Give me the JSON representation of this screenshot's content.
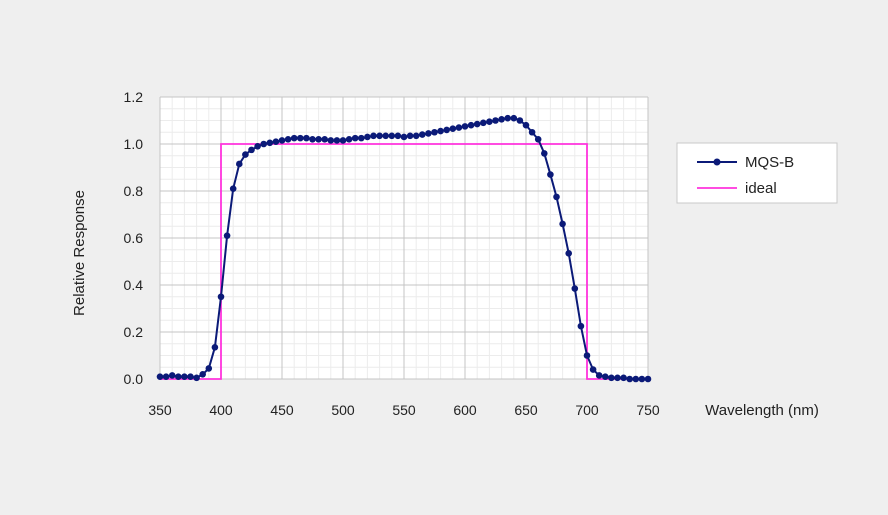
{
  "chart_data": {
    "type": "line",
    "title": "",
    "xlabel": "Wavelength (nm)",
    "ylabel": "Relative Response",
    "xlim": [
      350,
      750
    ],
    "ylim": [
      0,
      1.2
    ],
    "x_ticks": [
      350,
      400,
      450,
      500,
      550,
      600,
      650,
      700,
      750
    ],
    "y_ticks": [
      "0.0",
      "0.2",
      "0.4",
      "0.6",
      "0.8",
      "1.0",
      "1.2"
    ],
    "grid": true,
    "legend_position": "right",
    "series": [
      {
        "name": "MQS-B",
        "color": "#0b1a78",
        "marker": "circle",
        "x": [
          350,
          355,
          360,
          365,
          370,
          375,
          380,
          385,
          390,
          395,
          400,
          405,
          410,
          415,
          420,
          425,
          430,
          435,
          440,
          445,
          450,
          455,
          460,
          465,
          470,
          475,
          480,
          485,
          490,
          495,
          500,
          505,
          510,
          515,
          520,
          525,
          530,
          535,
          540,
          545,
          550,
          555,
          560,
          565,
          570,
          575,
          580,
          585,
          590,
          595,
          600,
          605,
          610,
          615,
          620,
          625,
          630,
          635,
          640,
          645,
          650,
          655,
          660,
          665,
          670,
          675,
          680,
          685,
          690,
          695,
          700,
          705,
          710,
          715,
          720,
          725,
          730,
          735,
          740,
          745,
          750
        ],
        "y": [
          0.01,
          0.01,
          0.015,
          0.01,
          0.01,
          0.01,
          0.005,
          0.02,
          0.045,
          0.135,
          0.35,
          0.61,
          0.81,
          0.915,
          0.955,
          0.975,
          0.99,
          1.0,
          1.005,
          1.01,
          1.015,
          1.02,
          1.025,
          1.025,
          1.025,
          1.02,
          1.02,
          1.02,
          1.015,
          1.015,
          1.015,
          1.02,
          1.025,
          1.025,
          1.03,
          1.035,
          1.035,
          1.035,
          1.035,
          1.035,
          1.03,
          1.035,
          1.035,
          1.04,
          1.045,
          1.05,
          1.055,
          1.06,
          1.065,
          1.07,
          1.075,
          1.08,
          1.085,
          1.09,
          1.095,
          1.1,
          1.105,
          1.11,
          1.11,
          1.1,
          1.08,
          1.05,
          1.02,
          0.96,
          0.87,
          0.775,
          0.66,
          0.535,
          0.385,
          0.225,
          0.1,
          0.04,
          0.015,
          0.01,
          0.005,
          0.005,
          0.005,
          0.0,
          0.0,
          0.0,
          0.0
        ]
      },
      {
        "name": "ideal",
        "color": "#ff33dd",
        "marker": "none",
        "x": [
          350,
          400,
          400,
          700,
          700,
          750
        ],
        "y": [
          0,
          0,
          1,
          1,
          0,
          0
        ]
      }
    ]
  }
}
